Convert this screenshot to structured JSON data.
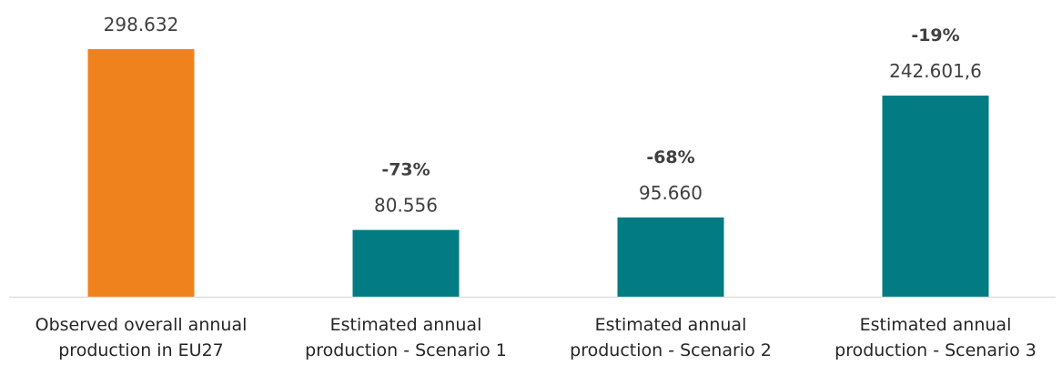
{
  "chart_data": {
    "type": "bar",
    "title": "",
    "xlabel": "",
    "ylabel": "",
    "ylim": [
      0,
      298632
    ],
    "grid": false,
    "categories": [
      [
        "Observed overall annual",
        "production in EU27"
      ],
      [
        "Estimated annual",
        "production - Scenario 1"
      ],
      [
        "Estimated annual",
        "production - Scenario 2"
      ],
      [
        "Estimated annual",
        "production - Scenario 3"
      ]
    ],
    "values": [
      298632,
      80556,
      95660,
      242601.6
    ],
    "value_labels": [
      "298.632",
      "80.556",
      "95.660",
      "242.601,6"
    ],
    "change_labels": [
      "",
      "-73%",
      "-68%",
      "-19%"
    ],
    "colors": [
      "#f0821e",
      "#027b82",
      "#027b82",
      "#027b82"
    ],
    "axis_color": "#d9d9d9"
  }
}
